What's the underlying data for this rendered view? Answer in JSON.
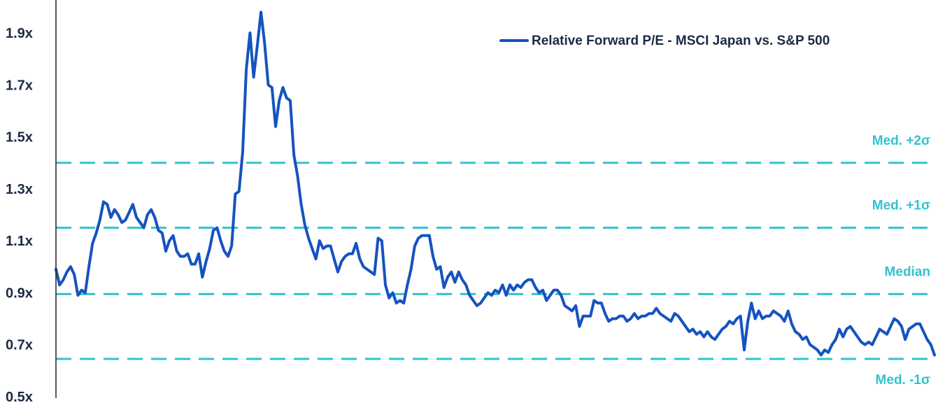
{
  "chart_data": {
    "type": "line",
    "title": "",
    "xlabel": "",
    "ylabel": "",
    "ylim": [
      0.5,
      2.0
    ],
    "yticks": [
      {
        "value": 0.5,
        "label": "0.5x"
      },
      {
        "value": 0.7,
        "label": "0.7x"
      },
      {
        "value": 0.9,
        "label": "0.9x"
      },
      {
        "value": 1.1,
        "label": "1.1x"
      },
      {
        "value": 1.3,
        "label": "1.3x"
      },
      {
        "value": 1.5,
        "label": "1.5x"
      },
      {
        "value": 1.7,
        "label": "1.7x"
      },
      {
        "value": 1.9,
        "label": "1.9x"
      }
    ],
    "grid": false,
    "legend_position": "top-right",
    "colors": {
      "series": "#1553c0",
      "reference": "#2fc4d0",
      "text": "#1b2a44"
    },
    "series": [
      {
        "name": "Relative Forward P/E - MSCI Japan vs. S&P 500",
        "values": [
          0.99,
          0.93,
          0.95,
          0.98,
          1.0,
          0.97,
          0.89,
          0.91,
          0.9,
          1.0,
          1.09,
          1.13,
          1.18,
          1.25,
          1.24,
          1.19,
          1.22,
          1.2,
          1.17,
          1.18,
          1.21,
          1.24,
          1.19,
          1.17,
          1.15,
          1.2,
          1.22,
          1.19,
          1.14,
          1.13,
          1.06,
          1.1,
          1.12,
          1.06,
          1.04,
          1.04,
          1.05,
          1.01,
          1.01,
          1.05,
          0.96,
          1.02,
          1.07,
          1.14,
          1.15,
          1.1,
          1.06,
          1.04,
          1.08,
          1.28,
          1.29,
          1.44,
          1.76,
          1.9,
          1.73,
          1.85,
          1.98,
          1.86,
          1.7,
          1.69,
          1.54,
          1.64,
          1.69,
          1.65,
          1.64,
          1.43,
          1.35,
          1.24,
          1.16,
          1.11,
          1.07,
          1.03,
          1.1,
          1.07,
          1.08,
          1.08,
          1.03,
          0.98,
          1.02,
          1.04,
          1.05,
          1.05,
          1.09,
          1.03,
          1.0,
          0.99,
          0.98,
          0.97,
          1.11,
          1.1,
          0.93,
          0.88,
          0.9,
          0.86,
          0.87,
          0.86,
          0.93,
          0.99,
          1.08,
          1.11,
          1.12,
          1.12,
          1.12,
          1.04,
          0.99,
          1.0,
          0.92,
          0.96,
          0.98,
          0.94,
          0.98,
          0.95,
          0.93,
          0.89,
          0.87,
          0.85,
          0.86,
          0.88,
          0.9,
          0.89,
          0.91,
          0.9,
          0.93,
          0.89,
          0.93,
          0.91,
          0.93,
          0.92,
          0.94,
          0.95,
          0.95,
          0.92,
          0.9,
          0.91,
          0.87,
          0.89,
          0.91,
          0.91,
          0.89,
          0.85,
          0.84,
          0.83,
          0.85,
          0.77,
          0.81,
          0.81,
          0.81,
          0.87,
          0.86,
          0.86,
          0.82,
          0.79,
          0.8,
          0.8,
          0.81,
          0.81,
          0.79,
          0.8,
          0.82,
          0.8,
          0.81,
          0.81,
          0.82,
          0.82,
          0.84,
          0.82,
          0.81,
          0.8,
          0.79,
          0.82,
          0.81,
          0.79,
          0.77,
          0.75,
          0.76,
          0.74,
          0.75,
          0.73,
          0.75,
          0.73,
          0.72,
          0.74,
          0.76,
          0.77,
          0.79,
          0.78,
          0.8,
          0.81,
          0.68,
          0.79,
          0.86,
          0.8,
          0.83,
          0.8,
          0.81,
          0.81,
          0.83,
          0.82,
          0.81,
          0.79,
          0.83,
          0.78,
          0.75,
          0.74,
          0.72,
          0.73,
          0.7,
          0.69,
          0.68,
          0.66,
          0.68,
          0.67,
          0.7,
          0.72,
          0.76,
          0.73,
          0.76,
          0.77,
          0.75,
          0.73,
          0.71,
          0.7,
          0.71,
          0.7,
          0.73,
          0.76,
          0.75,
          0.74,
          0.77,
          0.8,
          0.79,
          0.77,
          0.72,
          0.76,
          0.77,
          0.78,
          0.78,
          0.75,
          0.72,
          0.7,
          0.66
        ]
      }
    ],
    "reference_lines": [
      {
        "label": "Med. +2σ",
        "value": 1.4
      },
      {
        "label": "Med. +1σ",
        "value": 1.15
      },
      {
        "label": "Median",
        "value": 0.895
      },
      {
        "label": "Med. -1σ",
        "value": 0.645
      }
    ]
  }
}
